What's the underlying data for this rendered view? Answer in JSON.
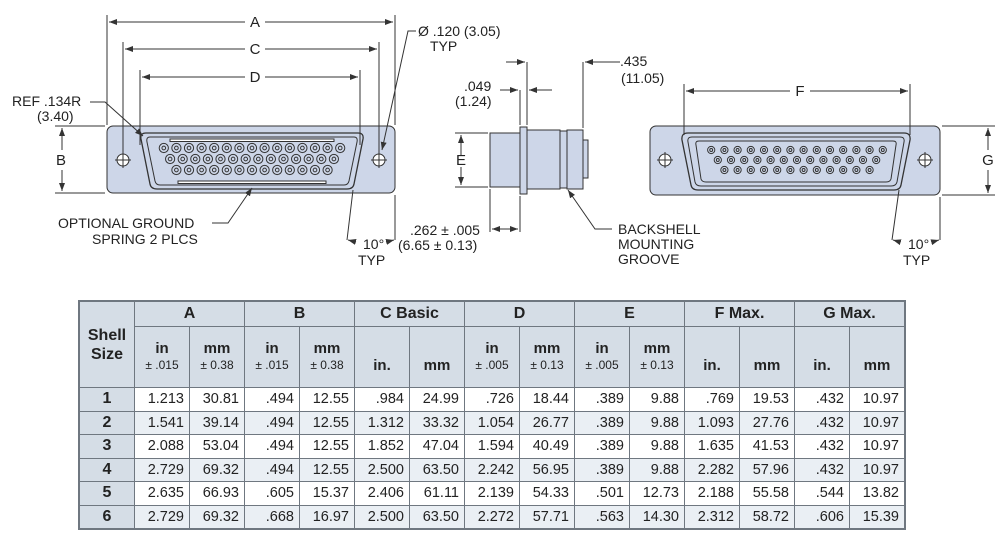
{
  "drawing": {
    "front_view": {
      "dim_a": "A",
      "dim_c": "C",
      "dim_d": "D",
      "dim_b": "B",
      "ref_radius": "REF .134R",
      "ref_radius_mm": "(3.40)",
      "hole_dia": "Ø .120 (3.05)",
      "hole_typ": "TYP",
      "ground_spring_1": "OPTIONAL GROUND",
      "ground_spring_2": "SPRING 2 PLCS",
      "angle": "10°",
      "angle_typ": "TYP"
    },
    "side_view": {
      "dim_049": ".049",
      "dim_049_mm": "(1.24)",
      "dim_435": ".435",
      "dim_435_mm": "(11.05)",
      "dim_e": "E",
      "dim_262": ".262 ± .005",
      "dim_262_mm": "(6.65 ± 0.13)",
      "groove_1": "BACKSHELL",
      "groove_2": "MOUNTING",
      "groove_3": "GROOVE"
    },
    "rear_view": {
      "dim_f": "F",
      "dim_g": "G",
      "angle": "10°",
      "angle_typ": "TYP"
    },
    "colors": {
      "shell_fill": "#cdd6e8",
      "line": "#333333"
    }
  },
  "table": {
    "shell_header_1": "Shell",
    "shell_header_2": "Size",
    "groups": [
      "A",
      "B",
      "C Basic",
      "D",
      "E",
      "F Max.",
      "G Max."
    ],
    "subheaders": [
      {
        "unit": "in",
        "tol": "± .015"
      },
      {
        "unit": "mm",
        "tol": "± 0.38"
      },
      {
        "unit": "in",
        "tol": "± .015"
      },
      {
        "unit": "mm",
        "tol": "± 0.38"
      },
      {
        "unit": "in.",
        "tol": ""
      },
      {
        "unit": "mm",
        "tol": ""
      },
      {
        "unit": "in",
        "tol": "± .005"
      },
      {
        "unit": "mm",
        "tol": "± 0.13"
      },
      {
        "unit": "in",
        "tol": "± .005"
      },
      {
        "unit": "mm",
        "tol": "± 0.13"
      },
      {
        "unit": "in.",
        "tol": ""
      },
      {
        "unit": "mm",
        "tol": ""
      },
      {
        "unit": "in.",
        "tol": ""
      },
      {
        "unit": "mm",
        "tol": ""
      }
    ],
    "rows": [
      [
        "1",
        "1.213",
        "30.81",
        ".494",
        "12.55",
        ".984",
        "24.99",
        ".726",
        "18.44",
        ".389",
        "9.88",
        ".769",
        "19.53",
        ".432",
        "10.97"
      ],
      [
        "2",
        "1.541",
        "39.14",
        ".494",
        "12.55",
        "1.312",
        "33.32",
        "1.054",
        "26.77",
        ".389",
        "9.88",
        "1.093",
        "27.76",
        ".432",
        "10.97"
      ],
      [
        "3",
        "2.088",
        "53.04",
        ".494",
        "12.55",
        "1.852",
        "47.04",
        "1.594",
        "40.49",
        ".389",
        "9.88",
        "1.635",
        "41.53",
        ".432",
        "10.97"
      ],
      [
        "4",
        "2.729",
        "69.32",
        ".494",
        "12.55",
        "2.500",
        "63.50",
        "2.242",
        "56.95",
        ".389",
        "9.88",
        "2.282",
        "57.96",
        ".432",
        "10.97"
      ],
      [
        "5",
        "2.635",
        "66.93",
        ".605",
        "15.37",
        "2.406",
        "61.11",
        "2.139",
        "54.33",
        ".501",
        "12.73",
        "2.188",
        "55.58",
        ".544",
        "13.82"
      ],
      [
        "6",
        "2.729",
        "69.32",
        ".668",
        "16.97",
        "2.500",
        "63.50",
        "2.272",
        "57.71",
        ".563",
        "14.30",
        "2.312",
        "58.72",
        ".606",
        "15.39"
      ]
    ]
  }
}
